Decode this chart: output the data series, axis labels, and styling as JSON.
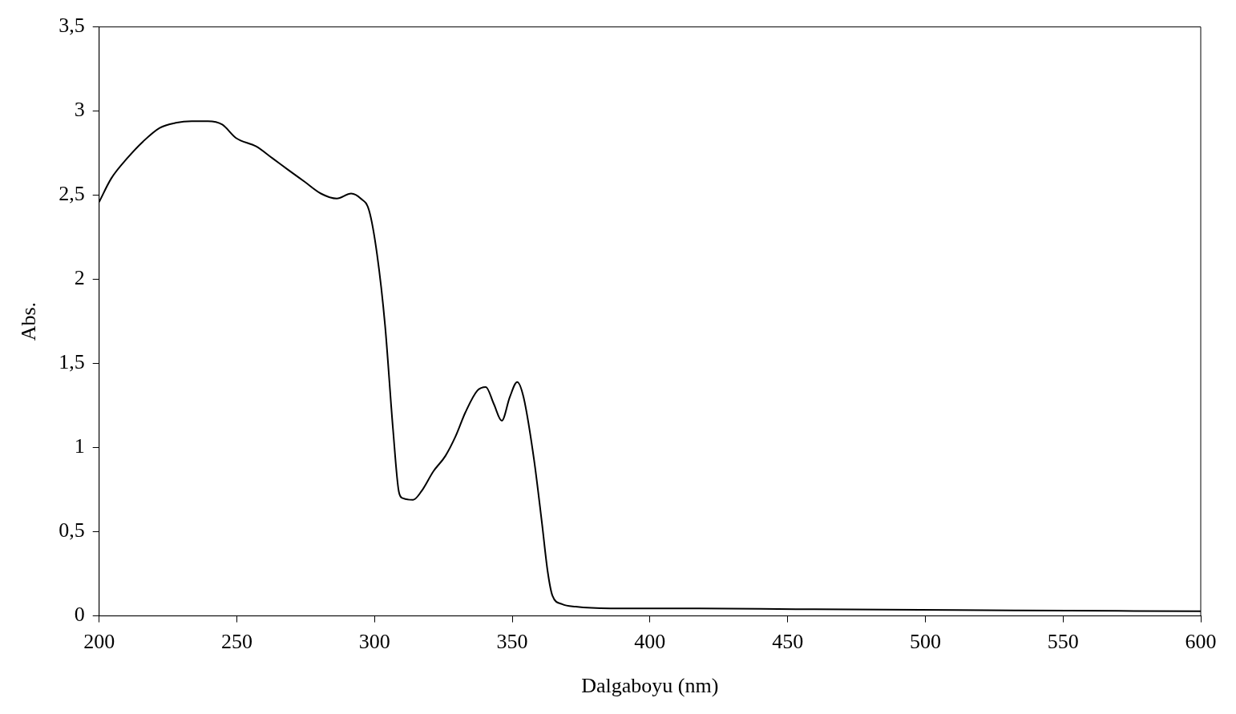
{
  "chart_data": {
    "type": "line",
    "xlabel": "Dalgaboyu (nm)",
    "ylabel": "Abs.",
    "xlim": [
      200,
      600
    ],
    "xticks": [
      200,
      250,
      300,
      350,
      400,
      450,
      500,
      550,
      600
    ],
    "ylim": [
      0,
      3.5
    ],
    "yticks": [
      0,
      {
        "value": 0.5,
        "label": "0,5"
      },
      1,
      {
        "value": 1.5,
        "label": "1,5"
      },
      2,
      {
        "value": 2.5,
        "label": "2,5"
      },
      3,
      {
        "value": 3.5,
        "label": "3,5"
      }
    ],
    "grid": false,
    "legend": false,
    "marker": "none",
    "line_style": "solid",
    "series": [
      {
        "color": "#000000",
        "x": [
          200,
          204.4,
          210.2,
          216,
          222,
          227.8,
          233.6,
          239.5,
          244.7,
          249.7,
          257,
          262.9,
          268.7,
          274.6,
          280.5,
          286.3,
          291.5,
          295,
          298,
          300.9,
          303.8,
          306.7,
          308.8,
          310.2,
          314,
          317,
          321.4,
          325.7,
          329.5,
          333,
          337.4,
          340.4,
          343.3,
          346.2,
          349.1,
          351.8,
          354.1,
          357.9,
          360.8,
          362.9,
          364.6,
          368.1,
          373,
          385.7,
          418,
          453,
          511,
          570,
          600
        ],
        "values": [
          2.46,
          2.6,
          2.72,
          2.82,
          2.9,
          2.93,
          2.94,
          2.94,
          2.92,
          2.84,
          2.79,
          2.72,
          2.65,
          2.58,
          2.51,
          2.48,
          2.51,
          2.48,
          2.41,
          2.15,
          1.73,
          1.11,
          0.74,
          0.7,
          0.69,
          0.74,
          0.86,
          0.95,
          1.07,
          1.21,
          1.34,
          1.36,
          1.26,
          1.16,
          1.3,
          1.39,
          1.3,
          0.93,
          0.55,
          0.26,
          0.12,
          0.07,
          0.055,
          0.045,
          0.045,
          0.04,
          0.035,
          0.03,
          0.028
        ]
      }
    ]
  }
}
